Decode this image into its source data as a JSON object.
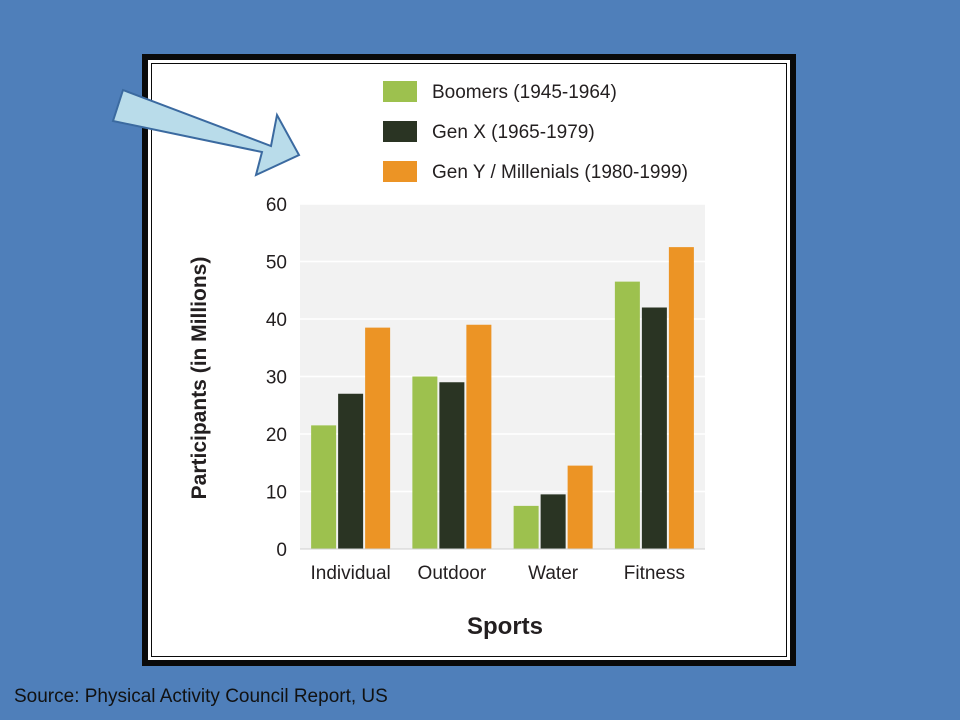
{
  "source_note": "Source: Physical Activity Council Report, US",
  "colors": {
    "background": "#4f7fba",
    "arrow_fill": "#b9dcea",
    "arrow_stroke": "#3b6aa0",
    "plot_bg": "#f2f2f2",
    "grid": "#ffffff",
    "text": "#231f20"
  },
  "icons": {
    "pointer": "right-arrow-icon"
  },
  "chart_data": {
    "type": "bar",
    "xlabel": "Sports",
    "ylabel": "Participants (in Millions)",
    "ylim": [
      0,
      60
    ],
    "yticks": [
      0,
      10,
      20,
      30,
      40,
      50,
      60
    ],
    "categories": [
      "Individual",
      "Outdoor",
      "Water",
      "Fitness"
    ],
    "grid": true,
    "legend_position": "top",
    "series": [
      {
        "name": "Boomers (1945-1964)",
        "color": "#9dc14e",
        "values": [
          21.5,
          30,
          7.5,
          46.5
        ]
      },
      {
        "name": "Gen X (1965-1979)",
        "color": "#2a3423",
        "values": [
          27,
          29,
          9.5,
          42
        ]
      },
      {
        "name": "Gen Y / Millenials (1980-1999)",
        "color": "#ec9425",
        "values": [
          38.5,
          39,
          14.5,
          52.5
        ]
      }
    ]
  }
}
